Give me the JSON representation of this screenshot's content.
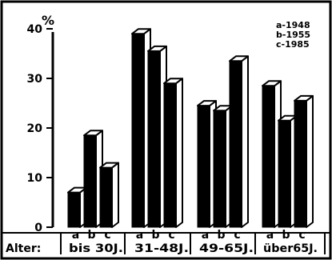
{
  "chart_data": {
    "type": "bar",
    "title": "",
    "ylabel": "%",
    "xlabel": "Alter:",
    "ylim": [
      0,
      40
    ],
    "yticks": [
      "0",
      "10",
      "20",
      "30",
      "40"
    ],
    "groups": [
      "bis 30J.",
      "31-48J.",
      "49-65J.",
      "über65J."
    ],
    "bar_letters": [
      "a",
      "b",
      "c"
    ],
    "series": [
      {
        "name": "a",
        "values": [
          7,
          39,
          24.5,
          28.5
        ]
      },
      {
        "name": "b",
        "values": [
          18.5,
          35.5,
          23.5,
          21.5
        ]
      },
      {
        "name": "c",
        "values": [
          12,
          29,
          33.5,
          25.5
        ]
      }
    ],
    "legend": {
      "position": "top-right",
      "entries": [
        "a-1948",
        "b-1955",
        "c-1985"
      ]
    },
    "colors": {
      "bar_front": "#000000",
      "bar_side": "#ffffff",
      "background": "#ffffff"
    },
    "style": "3d-outlined-bars"
  }
}
